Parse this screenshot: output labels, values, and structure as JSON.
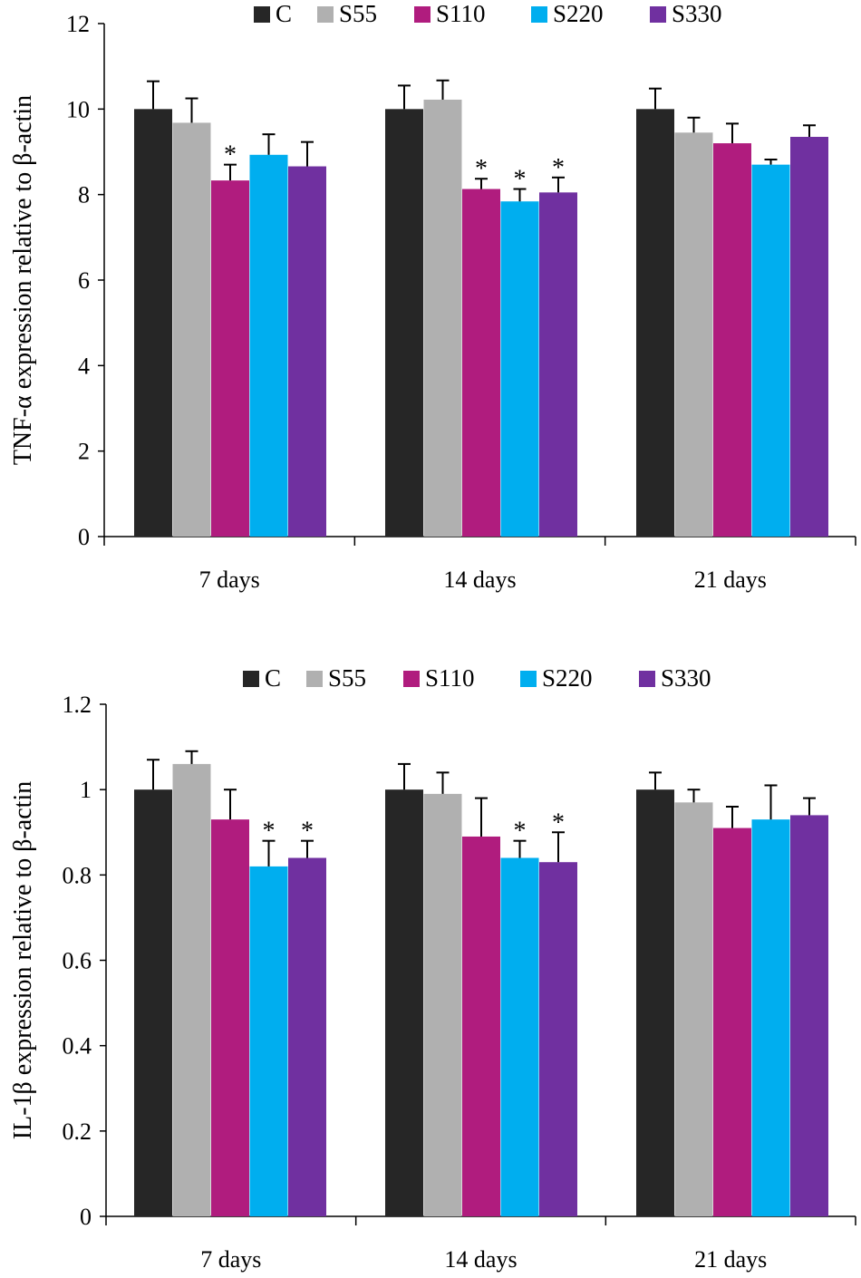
{
  "colors": {
    "C": "#262626",
    "S55": "#b0b0b0",
    "S110": "#b01c7e",
    "S220": "#00aeef",
    "S330": "#7030a0",
    "axis": "#000000"
  },
  "chart_data": [
    {
      "type": "bar",
      "title": "",
      "xlabel": "",
      "ylabel": "TNF-α expression relative to β-actin",
      "ylim": [
        0,
        12
      ],
      "yticks": [
        "0",
        "2",
        "4",
        "6",
        "8",
        "10",
        "12"
      ],
      "categories": [
        "7 days",
        "14 days",
        "21 days"
      ],
      "legend": [
        "C",
        "S55",
        "S110",
        "S220",
        "S330"
      ],
      "legend_position": "top-center",
      "series": [
        {
          "name": "C",
          "values": [
            10.0,
            10.0,
            10.0
          ],
          "errors": [
            0.65,
            0.55,
            0.48
          ],
          "significant": [
            false,
            false,
            false
          ]
        },
        {
          "name": "S55",
          "values": [
            9.68,
            10.22,
            9.45
          ],
          "errors": [
            0.57,
            0.45,
            0.35
          ],
          "significant": [
            false,
            false,
            false
          ]
        },
        {
          "name": "S110",
          "values": [
            8.33,
            8.13,
            9.2
          ],
          "errors": [
            0.37,
            0.24,
            0.46
          ],
          "significant": [
            true,
            true,
            false
          ]
        },
        {
          "name": "S220",
          "values": [
            8.93,
            7.84,
            8.7
          ],
          "errors": [
            0.48,
            0.29,
            0.12
          ],
          "significant": [
            false,
            true,
            false
          ]
        },
        {
          "name": "S330",
          "values": [
            8.66,
            8.05,
            9.35
          ],
          "errors": [
            0.57,
            0.35,
            0.27
          ],
          "significant": [
            false,
            true,
            false
          ]
        }
      ],
      "significance_marker": "*"
    },
    {
      "type": "bar",
      "title": "",
      "xlabel": "",
      "ylabel": "IL-1β  expression relative to β-actin",
      "ylim": [
        0,
        1.2
      ],
      "yticks": [
        "0",
        "0.2",
        "0.4",
        "0.6",
        "0.8",
        "1",
        "1.2"
      ],
      "categories": [
        "7 days",
        "14 days",
        "21 days"
      ],
      "legend": [
        "C",
        "S55",
        "S110",
        "S220",
        "S330"
      ],
      "legend_position": "top-center",
      "series": [
        {
          "name": "C",
          "values": [
            1.0,
            1.0,
            1.0
          ],
          "errors": [
            0.07,
            0.06,
            0.04
          ],
          "significant": [
            false,
            false,
            false
          ]
        },
        {
          "name": "S55",
          "values": [
            1.06,
            0.99,
            0.97
          ],
          "errors": [
            0.03,
            0.05,
            0.03
          ],
          "significant": [
            false,
            false,
            false
          ]
        },
        {
          "name": "S110",
          "values": [
            0.93,
            0.89,
            0.91
          ],
          "errors": [
            0.07,
            0.09,
            0.05
          ],
          "significant": [
            false,
            false,
            false
          ]
        },
        {
          "name": "S220",
          "values": [
            0.82,
            0.84,
            0.93
          ],
          "errors": [
            0.06,
            0.04,
            0.08
          ],
          "significant": [
            true,
            true,
            false
          ]
        },
        {
          "name": "S330",
          "values": [
            0.84,
            0.83,
            0.94
          ],
          "errors": [
            0.04,
            0.07,
            0.04
          ],
          "significant": [
            true,
            true,
            false
          ]
        }
      ],
      "significance_marker": "*"
    }
  ]
}
